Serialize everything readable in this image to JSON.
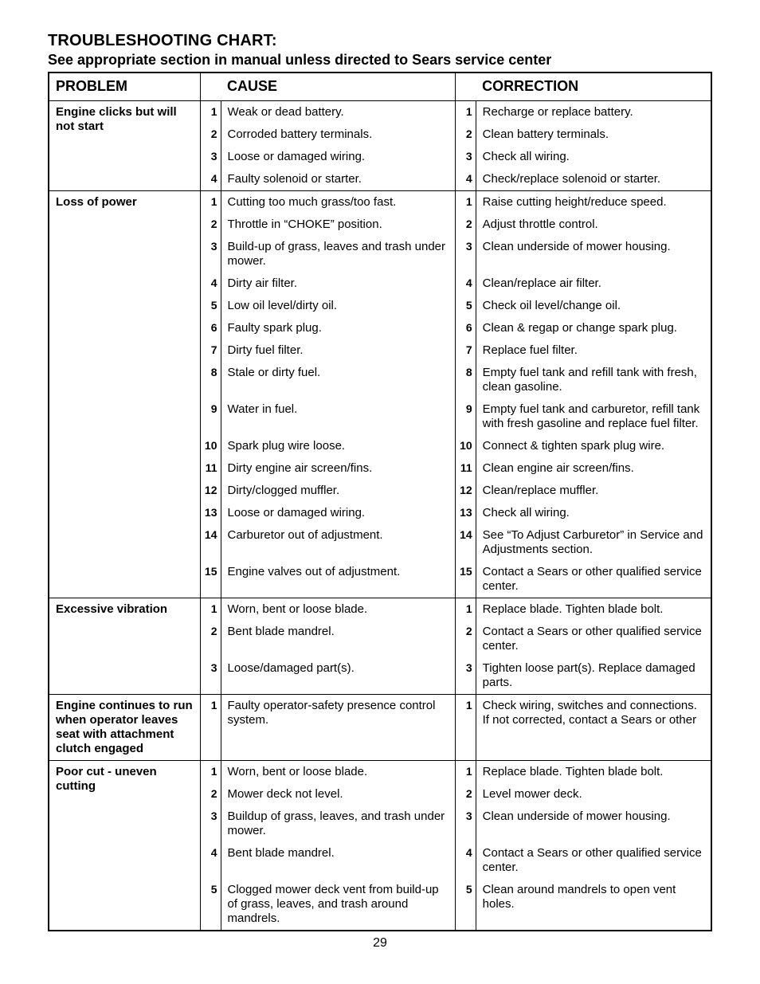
{
  "title": "TROUBLESHOOTING CHART:",
  "subtitle": "See appropriate section in manual unless directed to Sears service center",
  "headers": {
    "problem": "PROBLEM",
    "cause": "CAUSE",
    "correction": "CORRECTION"
  },
  "page_number": "29",
  "sections": [
    {
      "problem": "Engine clicks but will not start",
      "rows": [
        {
          "n": "1",
          "cause": "Weak or dead battery.",
          "correction": "Recharge or replace battery."
        },
        {
          "n": "2",
          "cause": "Corroded battery terminals.",
          "correction": "Clean battery terminals."
        },
        {
          "n": "3",
          "cause": "Loose or damaged wiring.",
          "correction": "Check all wiring."
        },
        {
          "n": "4",
          "cause": "Faulty solenoid or starter.",
          "correction": "Check/replace solenoid or starter."
        }
      ]
    },
    {
      "problem": "Loss of power",
      "rows": [
        {
          "n": "1",
          "cause": "Cutting too much grass/too fast.",
          "correction": "Raise cutting height/reduce speed."
        },
        {
          "n": "2",
          "cause": "Throttle in “CHOKE” position.",
          "correction": "Adjust throttle control."
        },
        {
          "n": "3",
          "cause": "Build-up of grass, leaves and trash under mower.",
          "correction": "Clean underside of mower housing."
        },
        {
          "n": "4",
          "cause": "Dirty air filter.",
          "correction": "Clean/replace air filter."
        },
        {
          "n": "5",
          "cause": "Low oil level/dirty oil.",
          "correction": "Check oil level/change oil."
        },
        {
          "n": "6",
          "cause": "Faulty spark plug.",
          "correction": "Clean & regap or change spark plug."
        },
        {
          "n": "7",
          "cause": "Dirty fuel filter.",
          "correction": "Replace fuel filter."
        },
        {
          "n": "8",
          "cause": "Stale or dirty fuel.",
          "correction": "Empty fuel tank and refill tank with fresh, clean gasoline."
        },
        {
          "n": "9",
          "cause": "Water in fuel.",
          "correction": "Empty fuel tank and carburetor, refill tank with fresh gasoline and replace fuel filter."
        },
        {
          "n": "10",
          "cause": "Spark plug wire loose.",
          "correction": "Connect & tighten spark plug wire."
        },
        {
          "n": "11",
          "cause": "Dirty engine air screen/fins.",
          "correction": "Clean engine air screen/fins."
        },
        {
          "n": "12",
          "cause": "Dirty/clogged muffler.",
          "correction": "Clean/replace muffler."
        },
        {
          "n": "13",
          "cause": "Loose or damaged wiring.",
          "correction": "Check all wiring."
        },
        {
          "n": "14",
          "cause": "Carburetor out of adjustment.",
          "correction": "See “To Adjust Carburetor” in Service and Adjustments section."
        },
        {
          "n": "15",
          "cause": "Engine valves out of adjustment.",
          "correction": "Contact a Sears or other qualified service center."
        }
      ]
    },
    {
      "problem": "Excessive vibration",
      "rows": [
        {
          "n": "1",
          "cause": "Worn, bent or loose blade.",
          "correction": "Replace blade. Tighten blade bolt."
        },
        {
          "n": "2",
          "cause": "Bent blade mandrel.",
          "correction": "Contact a Sears or other qualified service center."
        },
        {
          "n": "3",
          "cause": "Loose/damaged part(s).",
          "correction": "Tighten loose part(s). Replace damaged parts."
        }
      ]
    },
    {
      "problem": "Engine continues to run when operator leaves seat with atta­chment clutch engaged",
      "rows": [
        {
          "n": "1",
          "cause": "Faulty operator-safety presence control system.",
          "correction": "Check wiring, switches and connections. If not corrected, contact a Sears or other"
        }
      ]
    },
    {
      "problem": "Poor cut - uneven cutting",
      "rows": [
        {
          "n": "1",
          "cause": "Worn, bent or loose blade.",
          "correction": "Replace blade. Tighten blade bolt."
        },
        {
          "n": "2",
          "cause": "Mower deck not level.",
          "correction": "Level mower deck."
        },
        {
          "n": "3",
          "cause": "Buildup of grass, leaves, and trash under mower.",
          "correction": "Clean underside of mower housing."
        },
        {
          "n": "4",
          "cause": "Bent blade mandrel.",
          "correction": "Contact a Sears or other qualified service center."
        },
        {
          "n": "5",
          "cause": "Clogged mower deck vent from build-up of grass, leaves, and trash around mandrels.",
          "correction": "Clean around mandrels to open vent holes."
        }
      ]
    }
  ]
}
